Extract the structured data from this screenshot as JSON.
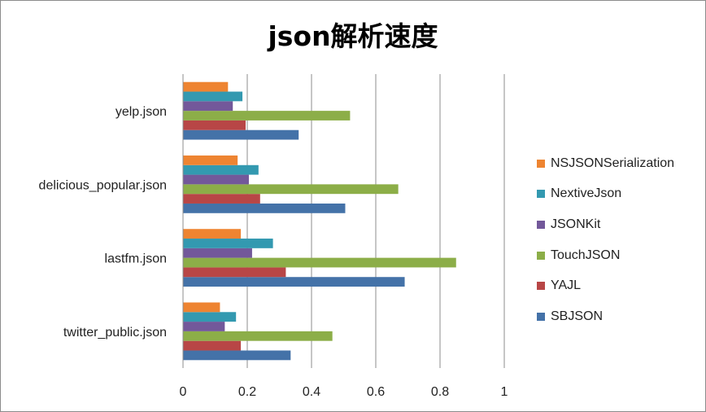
{
  "chart_data": {
    "type": "bar",
    "orientation": "horizontal",
    "title": "json解析速度",
    "categories": [
      "twitter_public.json",
      "lastfm.json",
      "delicious_popular.json",
      "yelp.json"
    ],
    "series": [
      {
        "name": "SBJSON",
        "color": "#4472A8",
        "values": [
          0.335,
          0.69,
          0.505,
          0.36
        ]
      },
      {
        "name": "YAJL",
        "color": "#B84646",
        "values": [
          0.18,
          0.32,
          0.24,
          0.195
        ]
      },
      {
        "name": "TouchJSON",
        "color": "#8CAE48",
        "values": [
          0.465,
          0.85,
          0.67,
          0.52
        ]
      },
      {
        "name": "JSONKit",
        "color": "#73589A",
        "values": [
          0.13,
          0.215,
          0.205,
          0.155
        ]
      },
      {
        "name": "NextiveJson",
        "color": "#3399B0",
        "values": [
          0.165,
          0.28,
          0.235,
          0.185
        ]
      },
      {
        "name": "NSJSONSerialization",
        "color": "#EE8431",
        "values": [
          0.115,
          0.18,
          0.17,
          0.14
        ]
      }
    ],
    "xlim": [
      0,
      1
    ],
    "xticks": [
      "0",
      "0.2",
      "0.4",
      "0.6",
      "0.8",
      "1"
    ],
    "xtick_values": [
      0,
      0.2,
      0.4,
      0.6,
      0.8,
      1
    ],
    "grid": true,
    "legend_position": "right",
    "legend_order": [
      "NSJSONSerialization",
      "NextiveJson",
      "JSONKit",
      "TouchJSON",
      "YAJL",
      "SBJSON"
    ]
  }
}
